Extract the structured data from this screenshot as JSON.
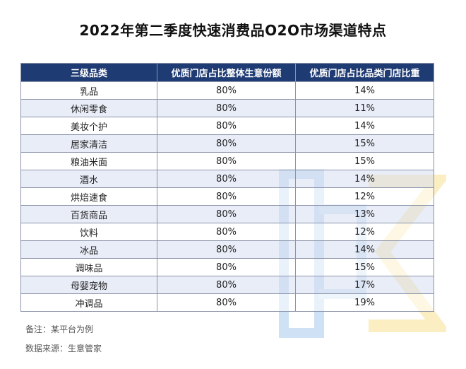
{
  "title": "2022年第二季度快速消费品O2O市场渠道特点",
  "table": {
    "headers": [
      "三级品类",
      "优质门店占比整体生意份额",
      "优质门店占比品类门店比重"
    ],
    "rows": [
      [
        "乳品",
        "80%",
        "14%"
      ],
      [
        "休闲零食",
        "80%",
        "11%"
      ],
      [
        "美妆个护",
        "80%",
        "14%"
      ],
      [
        "居家清洁",
        "80%",
        "15%"
      ],
      [
        "粮油米面",
        "80%",
        "15%"
      ],
      [
        "酒水",
        "80%",
        "14%"
      ],
      [
        "烘焙速食",
        "80%",
        "12%"
      ],
      [
        "百货商品",
        "80%",
        "13%"
      ],
      [
        "饮料",
        "80%",
        "12%"
      ],
      [
        "冰品",
        "80%",
        "14%"
      ],
      [
        "调味品",
        "80%",
        "15%"
      ],
      [
        "母婴宠物",
        "80%",
        "17%"
      ],
      [
        "冲调品",
        "80%",
        "19%"
      ]
    ]
  },
  "notes": {
    "remark": "备注：某平台为例",
    "source": "数据来源：生意管家"
  },
  "colors": {
    "header_bg": "#1f3b73",
    "row_alt": "#d7dff3",
    "watermark_blue": "#cfe2f5",
    "watermark_yellow": "#fbeec2"
  }
}
